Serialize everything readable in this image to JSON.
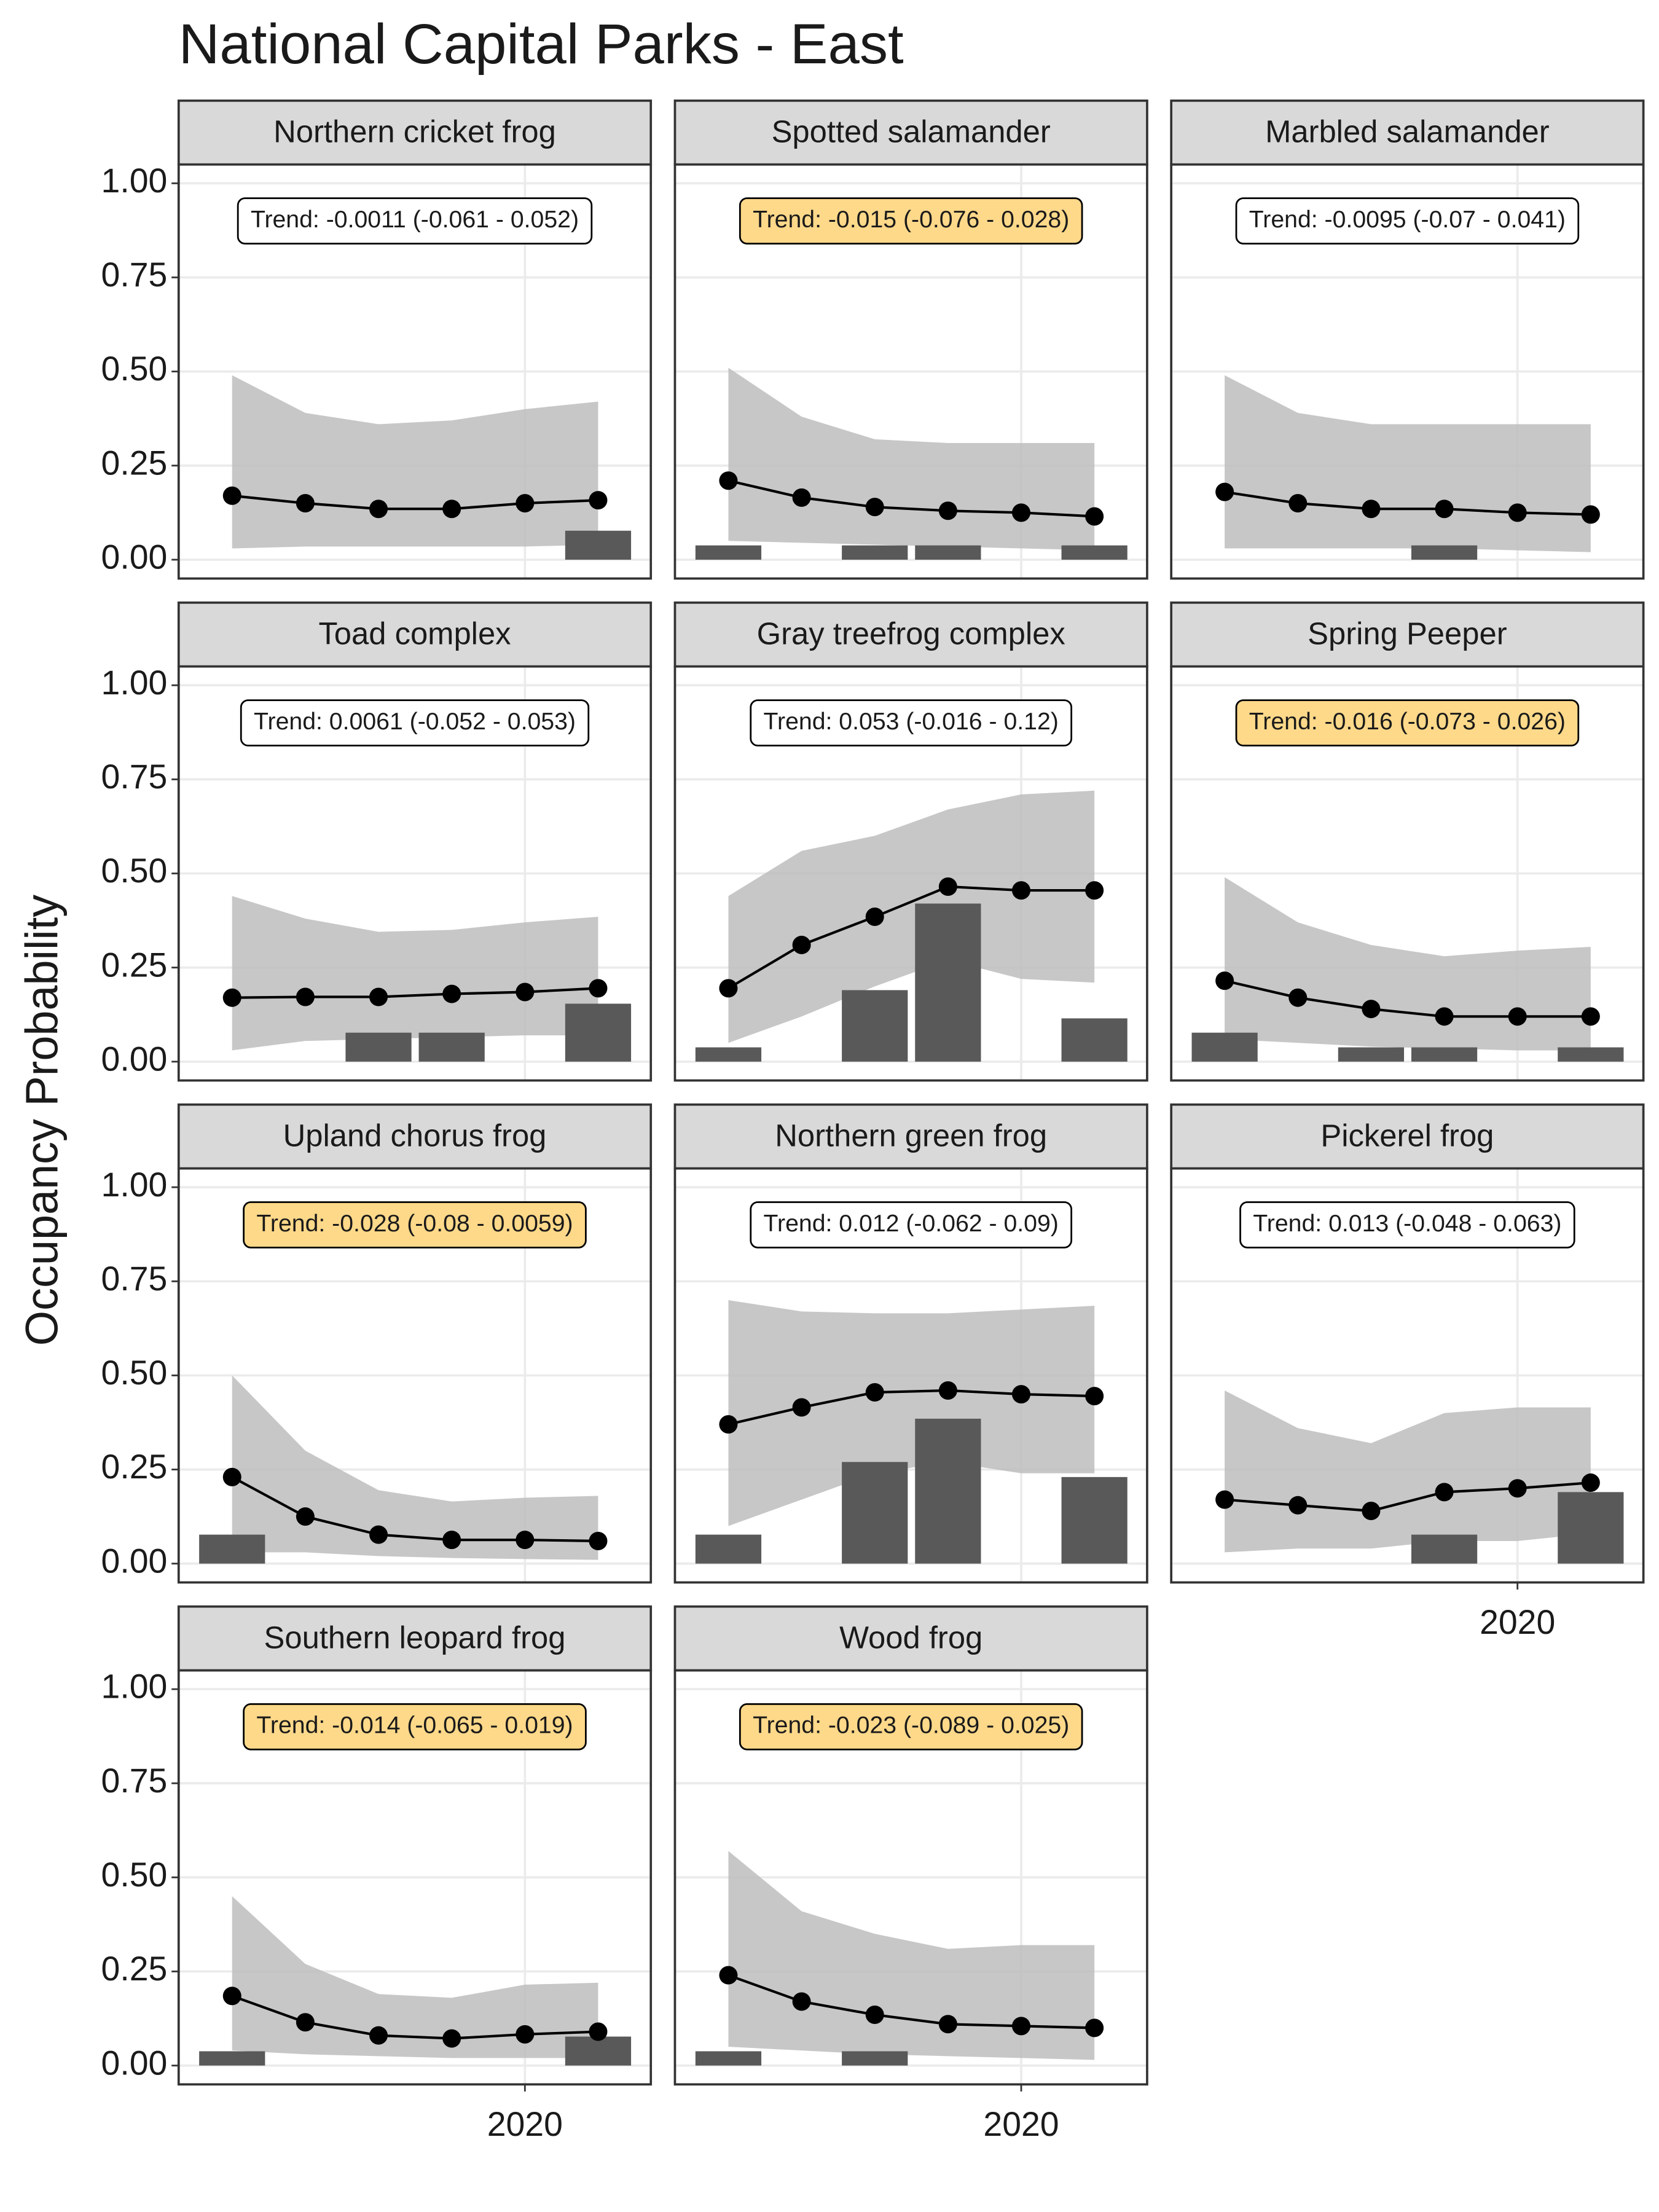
{
  "title": "National Capital Parks - East",
  "y_label": "Occupancy Probability",
  "chart_data": [
    {
      "type": "line",
      "title": "Northern cricket frog",
      "annotation": "Trend: -0.0011 (-0.061 - 0.052)",
      "annotation_fill": "#ffffff",
      "x": [
        2016,
        2017,
        2018,
        2019,
        2020,
        2021
      ],
      "xlim": [
        2015.27,
        2021.72
      ],
      "xticks": [
        2020
      ],
      "ylim": [
        -0.05,
        1.05
      ],
      "yticks": [
        {
          "value": 0,
          "label": "0.00"
        },
        0.25,
        {
          "value": 0.5,
          "label": "0.50"
        },
        0.75,
        {
          "value": 1,
          "label": "1.00"
        }
      ],
      "values": [
        0.17,
        0.15,
        0.135,
        0.135,
        0.15,
        0.158
      ],
      "lower": [
        0.03,
        0.035,
        0.035,
        0.035,
        0.035,
        0.04
      ],
      "upper": [
        0.49,
        0.39,
        0.36,
        0.37,
        0.4,
        0.42
      ],
      "bars": [
        null,
        null,
        null,
        null,
        null,
        0.077
      ],
      "line_color": "#000000",
      "ribbon_color": "#bdbdbd",
      "bar_color": "#595959",
      "grid": true
    },
    {
      "type": "line",
      "title": "Spotted salamander",
      "annotation": "Trend: -0.015 (-0.076 - 0.028)",
      "annotation_fill": "#ffd98a",
      "x": [
        2016,
        2017,
        2018,
        2019,
        2020,
        2021
      ],
      "xlim": [
        2015.27,
        2021.72
      ],
      "xticks": [
        2020
      ],
      "ylim": [
        -0.05,
        1.05
      ],
      "yticks": [
        {
          "value": 0,
          "label": "0.00"
        },
        0.25,
        {
          "value": 0.5,
          "label": "0.50"
        },
        0.75,
        {
          "value": 1,
          "label": "1.00"
        }
      ],
      "values": [
        0.21,
        0.165,
        0.14,
        0.13,
        0.125,
        0.115
      ],
      "lower": [
        0.05,
        0.045,
        0.04,
        0.035,
        0.03,
        0.025
      ],
      "upper": [
        0.51,
        0.38,
        0.32,
        0.31,
        0.31,
        0.31
      ],
      "bars": [
        0.038,
        null,
        0.038,
        0.038,
        null,
        0.038
      ],
      "line_color": "#000000",
      "ribbon_color": "#bdbdbd",
      "bar_color": "#595959",
      "grid": true
    },
    {
      "type": "line",
      "title": "Marbled salamander",
      "annotation": "Trend: -0.0095 (-0.07 - 0.041)",
      "annotation_fill": "#ffffff",
      "x": [
        2016,
        2017,
        2018,
        2019,
        2020,
        2021
      ],
      "xlim": [
        2015.27,
        2021.72
      ],
      "xticks": [
        2020
      ],
      "ylim": [
        -0.05,
        1.05
      ],
      "yticks": [
        {
          "value": 0,
          "label": "0.00"
        },
        0.25,
        {
          "value": 0.5,
          "label": "0.50"
        },
        0.75,
        {
          "value": 1,
          "label": "1.00"
        }
      ],
      "values": [
        0.18,
        0.15,
        0.135,
        0.135,
        0.125,
        0.12
      ],
      "lower": [
        0.03,
        0.03,
        0.03,
        0.03,
        0.025,
        0.02
      ],
      "upper": [
        0.49,
        0.39,
        0.36,
        0.36,
        0.36,
        0.36
      ],
      "bars": [
        null,
        null,
        null,
        0.038,
        null,
        null
      ],
      "line_color": "#000000",
      "ribbon_color": "#bdbdbd",
      "bar_color": "#595959",
      "grid": true
    },
    {
      "type": "line",
      "title": "Toad complex",
      "annotation": "Trend: 0.0061 (-0.052 - 0.053)",
      "annotation_fill": "#ffffff",
      "x": [
        2016,
        2017,
        2018,
        2019,
        2020,
        2021
      ],
      "xlim": [
        2015.27,
        2021.72
      ],
      "xticks": [
        2020
      ],
      "ylim": [
        -0.05,
        1.05
      ],
      "yticks": [
        {
          "value": 0,
          "label": "0.00"
        },
        0.25,
        {
          "value": 0.5,
          "label": "0.50"
        },
        0.75,
        {
          "value": 1,
          "label": "1.00"
        }
      ],
      "values": [
        0.17,
        0.172,
        0.172,
        0.18,
        0.185,
        0.195
      ],
      "lower": [
        0.03,
        0.055,
        0.06,
        0.065,
        0.07,
        0.07
      ],
      "upper": [
        0.44,
        0.38,
        0.345,
        0.35,
        0.37,
        0.385
      ],
      "bars": [
        null,
        null,
        0.077,
        0.077,
        null,
        0.154
      ],
      "line_color": "#000000",
      "ribbon_color": "#bdbdbd",
      "bar_color": "#595959",
      "grid": true
    },
    {
      "type": "line",
      "title": "Gray treefrog complex",
      "annotation": "Trend: 0.053 (-0.016 - 0.12)",
      "annotation_fill": "#ffffff",
      "x": [
        2016,
        2017,
        2018,
        2019,
        2020,
        2021
      ],
      "xlim": [
        2015.27,
        2021.72
      ],
      "xticks": [
        2020
      ],
      "ylim": [
        -0.05,
        1.05
      ],
      "yticks": [
        {
          "value": 0,
          "label": "0.00"
        },
        0.25,
        {
          "value": 0.5,
          "label": "0.50"
        },
        0.75,
        {
          "value": 1,
          "label": "1.00"
        }
      ],
      "values": [
        0.195,
        0.31,
        0.385,
        0.465,
        0.455,
        0.455
      ],
      "lower": [
        0.05,
        0.12,
        0.2,
        0.27,
        0.22,
        0.21
      ],
      "upper": [
        0.44,
        0.56,
        0.6,
        0.67,
        0.71,
        0.72
      ],
      "bars": [
        0.038,
        null,
        0.19,
        0.42,
        null,
        0.115
      ],
      "line_color": "#000000",
      "ribbon_color": "#bdbdbd",
      "bar_color": "#595959",
      "grid": true
    },
    {
      "type": "line",
      "title": "Spring Peeper",
      "annotation": "Trend: -0.016 (-0.073 - 0.026)",
      "annotation_fill": "#ffd98a",
      "x": [
        2016,
        2017,
        2018,
        2019,
        2020,
        2021
      ],
      "xlim": [
        2015.27,
        2021.72
      ],
      "xticks": [
        2020
      ],
      "ylim": [
        -0.05,
        1.05
      ],
      "yticks": [
        {
          "value": 0,
          "label": "0.00"
        },
        0.25,
        {
          "value": 0.5,
          "label": "0.50"
        },
        0.75,
        {
          "value": 1,
          "label": "1.00"
        }
      ],
      "values": [
        0.215,
        0.17,
        0.14,
        0.12,
        0.12,
        0.12
      ],
      "lower": [
        0.06,
        0.05,
        0.04,
        0.035,
        0.03,
        0.03
      ],
      "upper": [
        0.49,
        0.37,
        0.31,
        0.28,
        0.295,
        0.305
      ],
      "bars": [
        0.077,
        null,
        0.038,
        0.038,
        null,
        0.038
      ],
      "line_color": "#000000",
      "ribbon_color": "#bdbdbd",
      "bar_color": "#595959",
      "grid": true
    },
    {
      "type": "line",
      "title": "Upland chorus frog",
      "annotation": "Trend: -0.028 (-0.08 - 0.0059)",
      "annotation_fill": "#ffd98a",
      "x": [
        2016,
        2017,
        2018,
        2019,
        2020,
        2021
      ],
      "xlim": [
        2015.27,
        2021.72
      ],
      "xticks": [
        2020
      ],
      "ylim": [
        -0.05,
        1.05
      ],
      "yticks": [
        {
          "value": 0,
          "label": "0.00"
        },
        0.25,
        {
          "value": 0.5,
          "label": "0.50"
        },
        0.75,
        {
          "value": 1,
          "label": "1.00"
        }
      ],
      "values": [
        0.23,
        0.125,
        0.077,
        0.063,
        0.063,
        0.06
      ],
      "lower": [
        0.03,
        0.03,
        0.02,
        0.015,
        0.012,
        0.01
      ],
      "upper": [
        0.5,
        0.3,
        0.195,
        0.165,
        0.175,
        0.18
      ],
      "bars": [
        0.077,
        null,
        null,
        null,
        null,
        null
      ],
      "line_color": "#000000",
      "ribbon_color": "#bdbdbd",
      "bar_color": "#595959",
      "grid": true
    },
    {
      "type": "line",
      "title": "Northern green frog",
      "annotation": "Trend: 0.012 (-0.062 - 0.09)",
      "annotation_fill": "#ffffff",
      "x": [
        2016,
        2017,
        2018,
        2019,
        2020,
        2021
      ],
      "xlim": [
        2015.27,
        2021.72
      ],
      "xticks": [
        2020
      ],
      "ylim": [
        -0.05,
        1.05
      ],
      "yticks": [
        {
          "value": 0,
          "label": "0.00"
        },
        0.25,
        {
          "value": 0.5,
          "label": "0.50"
        },
        0.75,
        {
          "value": 1,
          "label": "1.00"
        }
      ],
      "values": [
        0.37,
        0.415,
        0.455,
        0.46,
        0.45,
        0.445
      ],
      "lower": [
        0.1,
        0.17,
        0.24,
        0.27,
        0.24,
        0.24
      ],
      "upper": [
        0.7,
        0.67,
        0.665,
        0.665,
        0.675,
        0.685
      ],
      "bars": [
        0.077,
        null,
        0.27,
        0.385,
        null,
        0.23
      ],
      "line_color": "#000000",
      "ribbon_color": "#bdbdbd",
      "bar_color": "#595959",
      "grid": true
    },
    {
      "type": "line",
      "title": "Pickerel frog",
      "annotation": "Trend: 0.013 (-0.048 - 0.063)",
      "annotation_fill": "#ffffff",
      "x": [
        2016,
        2017,
        2018,
        2019,
        2020,
        2021
      ],
      "xlim": [
        2015.27,
        2021.72
      ],
      "xticks": [
        2020
      ],
      "ylim": [
        -0.05,
        1.05
      ],
      "yticks": [
        {
          "value": 0,
          "label": "0.00"
        },
        0.25,
        {
          "value": 0.5,
          "label": "0.50"
        },
        0.75,
        {
          "value": 1,
          "label": "1.00"
        }
      ],
      "values": [
        0.17,
        0.155,
        0.14,
        0.19,
        0.2,
        0.215
      ],
      "lower": [
        0.03,
        0.04,
        0.04,
        0.06,
        0.06,
        0.08
      ],
      "upper": [
        0.46,
        0.36,
        0.32,
        0.4,
        0.415,
        0.415
      ],
      "bars": [
        null,
        null,
        null,
        0.077,
        null,
        0.19
      ],
      "line_color": "#000000",
      "ribbon_color": "#bdbdbd",
      "bar_color": "#595959",
      "grid": true
    },
    {
      "type": "line",
      "title": "Southern leopard frog",
      "annotation": "Trend: -0.014 (-0.065 - 0.019)",
      "annotation_fill": "#ffd98a",
      "x": [
        2016,
        2017,
        2018,
        2019,
        2020,
        2021
      ],
      "xlim": [
        2015.27,
        2021.72
      ],
      "xticks": [
        2020
      ],
      "ylim": [
        -0.05,
        1.05
      ],
      "yticks": [
        {
          "value": 0,
          "label": "0.00"
        },
        0.25,
        {
          "value": 0.5,
          "label": "0.50"
        },
        0.75,
        {
          "value": 1,
          "label": "1.00"
        }
      ],
      "values": [
        0.185,
        0.115,
        0.08,
        0.072,
        0.083,
        0.09
      ],
      "lower": [
        0.04,
        0.03,
        0.025,
        0.02,
        0.02,
        0.02
      ],
      "upper": [
        0.45,
        0.27,
        0.19,
        0.18,
        0.215,
        0.22
      ],
      "bars": [
        0.038,
        null,
        null,
        null,
        null,
        0.077
      ],
      "line_color": "#000000",
      "ribbon_color": "#bdbdbd",
      "bar_color": "#595959",
      "grid": true
    },
    {
      "type": "line",
      "title": "Wood frog",
      "annotation": "Trend: -0.023 (-0.089 - 0.025)",
      "annotation_fill": "#ffd98a",
      "x": [
        2016,
        2017,
        2018,
        2019,
        2020,
        2021
      ],
      "xlim": [
        2015.27,
        2021.72
      ],
      "xticks": [
        2020
      ],
      "ylim": [
        -0.05,
        1.05
      ],
      "yticks": [
        {
          "value": 0,
          "label": "0.00"
        },
        0.25,
        {
          "value": 0.5,
          "label": "0.50"
        },
        0.75,
        {
          "value": 1,
          "label": "1.00"
        }
      ],
      "values": [
        0.24,
        0.17,
        0.135,
        0.11,
        0.105,
        0.1
      ],
      "lower": [
        0.05,
        0.04,
        0.03,
        0.025,
        0.02,
        0.015
      ],
      "upper": [
        0.57,
        0.41,
        0.35,
        0.31,
        0.32,
        0.32
      ],
      "bars": [
        0.038,
        null,
        0.038,
        null,
        null,
        null
      ],
      "line_color": "#000000",
      "ribbon_color": "#bdbdbd",
      "bar_color": "#595959",
      "grid": true
    }
  ]
}
